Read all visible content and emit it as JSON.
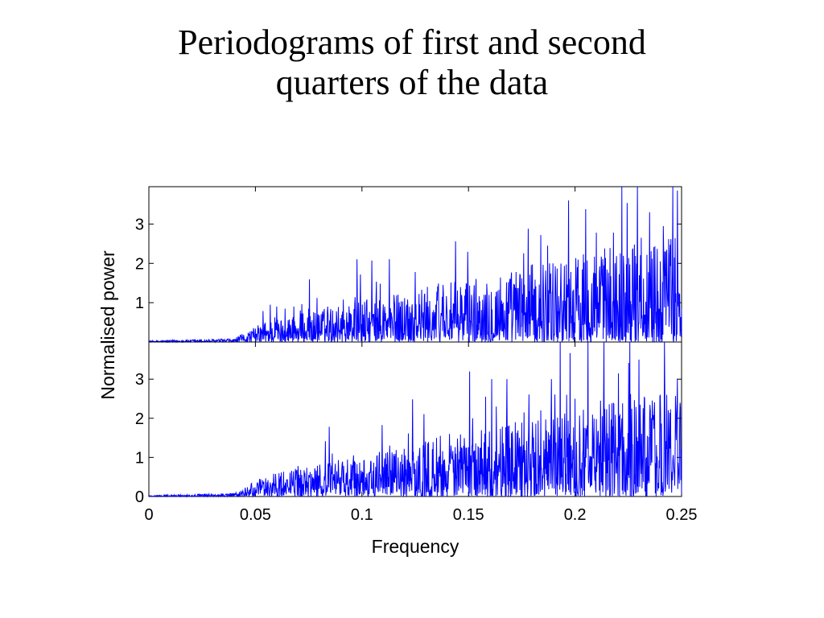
{
  "slide": {
    "title_line1": "Periodograms of first and second",
    "title_line2": "quarters of the data"
  },
  "chart_data": {
    "type": "line",
    "xlabel": "Frequency",
    "ylabel": "Normalised power",
    "xlim": [
      0,
      0.25
    ],
    "x_ticks": [
      "0",
      "0.05",
      "0.1",
      "0.15",
      "0.2",
      "0.25"
    ],
    "line_color": "#0000ff",
    "panels": [
      {
        "name": "first quarter",
        "ylim": [
          0,
          3.95
        ],
        "y_ticks": [
          "1",
          "2",
          "3"
        ],
        "peaks": [
          [
            0.057,
            0.95
          ],
          [
            0.06,
            0.9
          ],
          [
            0.064,
            0.85
          ],
          [
            0.068,
            0.9
          ],
          [
            0.071,
            0.8
          ],
          [
            0.075,
            0.85
          ],
          [
            0.079,
            1.12
          ],
          [
            0.084,
            0.9
          ],
          [
            0.088,
            0.78
          ],
          [
            0.097,
            0.78
          ],
          [
            0.106,
            0.62
          ],
          [
            0.111,
            0.73
          ],
          [
            0.118,
            0.9
          ],
          [
            0.121,
            0.95
          ],
          [
            0.125,
            1.78
          ],
          [
            0.131,
            0.9
          ],
          [
            0.138,
            1.45
          ],
          [
            0.144,
            2.56
          ],
          [
            0.149,
            1.48
          ],
          [
            0.158,
            1.2
          ],
          [
            0.165,
            1.25
          ],
          [
            0.172,
            1.38
          ],
          [
            0.178,
            2.88
          ],
          [
            0.184,
            2.72
          ],
          [
            0.188,
            2.0
          ],
          [
            0.197,
            3.6
          ],
          [
            0.201,
            1.9
          ],
          [
            0.205,
            3.38
          ],
          [
            0.21,
            2.78
          ],
          [
            0.214,
            2.38
          ],
          [
            0.218,
            2.78
          ],
          [
            0.222,
            3.95
          ],
          [
            0.227,
            2.35
          ],
          [
            0.231,
            2.65
          ],
          [
            0.235,
            3.3
          ],
          [
            0.24,
            2.05
          ],
          [
            0.244,
            2.35
          ],
          [
            0.248,
            3.85
          ]
        ]
      },
      {
        "name": "second quarter",
        "ylim": [
          0,
          3.95
        ],
        "y_ticks": [
          "0",
          "1",
          "2",
          "3"
        ],
        "peaks": [
          [
            0.054,
            0.28
          ],
          [
            0.061,
            0.25
          ],
          [
            0.07,
            0.78
          ],
          [
            0.075,
            0.55
          ],
          [
            0.078,
            0.62
          ],
          [
            0.086,
            0.5
          ],
          [
            0.096,
            0.9
          ],
          [
            0.101,
            0.92
          ],
          [
            0.108,
            0.98
          ],
          [
            0.113,
            1.3
          ],
          [
            0.117,
            1.0
          ],
          [
            0.124,
            0.92
          ],
          [
            0.129,
            1.0
          ],
          [
            0.135,
            1.5
          ],
          [
            0.141,
            1.6
          ],
          [
            0.145,
            1.1
          ],
          [
            0.152,
            2.0
          ],
          [
            0.158,
            2.55
          ],
          [
            0.163,
            2.3
          ],
          [
            0.168,
            3.0
          ],
          [
            0.172,
            1.9
          ],
          [
            0.176,
            2.15
          ],
          [
            0.18,
            1.9
          ],
          [
            0.184,
            2.2
          ],
          [
            0.189,
            3.0
          ],
          [
            0.196,
            2.6
          ],
          [
            0.2,
            2.5
          ],
          [
            0.206,
            3.95
          ],
          [
            0.212,
            2.45
          ],
          [
            0.218,
            2.38
          ],
          [
            0.222,
            2.0
          ],
          [
            0.226,
            2.62
          ],
          [
            0.23,
            3.5
          ],
          [
            0.235,
            2.0
          ],
          [
            0.24,
            2.6
          ],
          [
            0.243,
            2.6
          ],
          [
            0.248,
            3.0
          ]
        ]
      }
    ]
  }
}
